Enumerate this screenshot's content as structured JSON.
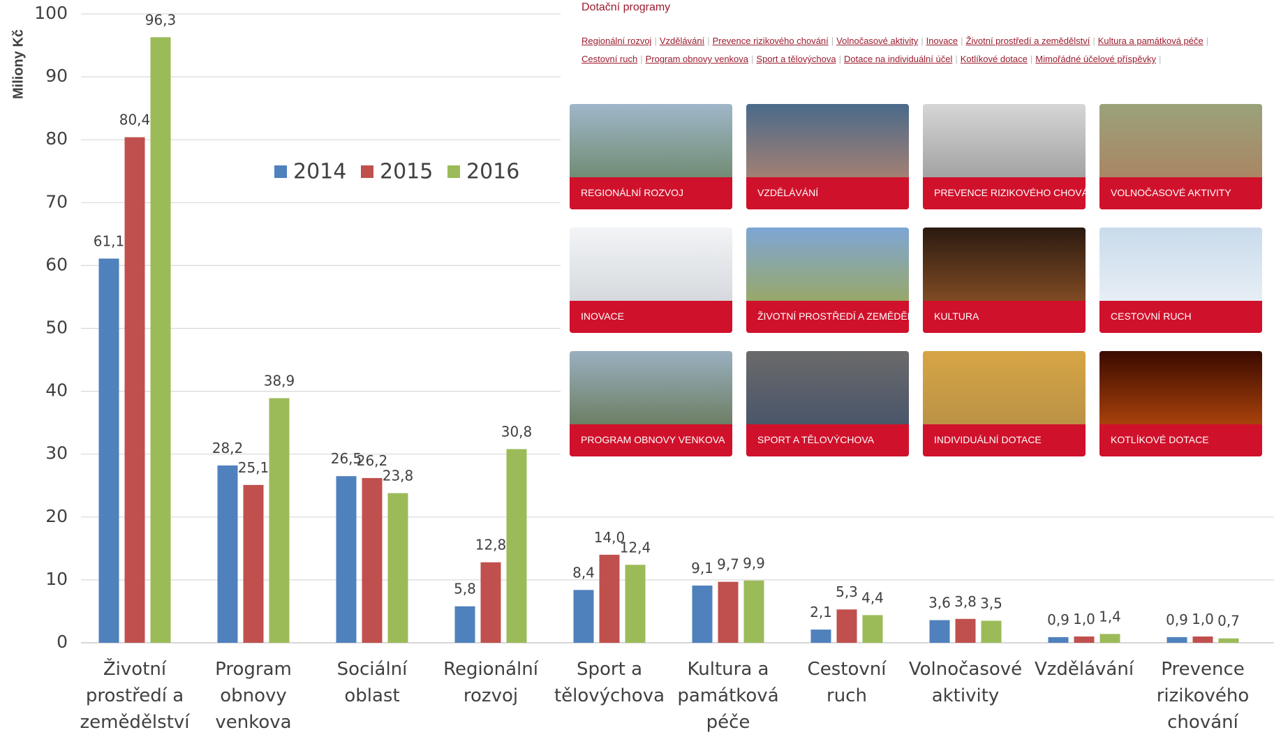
{
  "chart_data": {
    "type": "bar",
    "y_label": "Miliony Kč",
    "categories": [
      "Životní prostředí a zemědělství",
      "Program obnovy venkova",
      "Sociální oblast",
      "Regionální rozvoj",
      "Sport a tělovýchova",
      "Kultura a památková péče",
      "Cestovní ruch",
      "Volnočasové aktivity",
      "Vzdělávání",
      "Prevence rizikového chování"
    ],
    "series": [
      {
        "name": "2014",
        "color": "#4f81bd",
        "values": [
          61.1,
          28.2,
          26.5,
          5.8,
          8.4,
          9.1,
          2.1,
          3.6,
          0.9,
          0.9
        ],
        "value_labels": [
          "61,1",
          "28,2",
          "26,5",
          "5,8",
          "8,4",
          "9,1",
          "2,1",
          "3,6",
          "0,9",
          "0,9"
        ]
      },
      {
        "name": "2015",
        "color": "#c0504d",
        "values": [
          80.4,
          25.1,
          26.2,
          12.8,
          14.0,
          9.7,
          5.3,
          3.8,
          1.0,
          1.0
        ],
        "value_labels": [
          "80,4",
          "25,1",
          "26,2",
          "12,8",
          "14,0",
          "9,7",
          "5,3",
          "3,8",
          "1,0",
          "1,0"
        ]
      },
      {
        "name": "2016",
        "color": "#9bbb59",
        "values": [
          96.3,
          38.9,
          23.8,
          30.8,
          12.4,
          9.9,
          4.4,
          3.5,
          1.4,
          0.7
        ],
        "value_labels": [
          "96,3",
          "38,9",
          "23,8",
          "30,8",
          "12,4",
          "9,9",
          "4,4",
          "3,5",
          "1,4",
          "0,7"
        ]
      }
    ],
    "ylim": [
      0,
      100
    ],
    "yticks": [
      0,
      10,
      20,
      30,
      40,
      50,
      60,
      70,
      80,
      90,
      100
    ],
    "grid": true
  },
  "overlay": {
    "title": "Dotační programy",
    "links": [
      "Regionální rozvoj",
      "Vzdělávání",
      "Prevence rizikového chování",
      "Volnočasové aktivity",
      "Inovace",
      "Životní prostředí a zemědělství",
      "Kultura a památková péče",
      "Cestovní ruch",
      "Program obnovy venkova",
      "Sport a tělovýchova",
      "Dotace na individuální účel",
      "Kotlíkové dotace",
      "Mimořádné účelové příspěvky"
    ],
    "tiles": [
      "REGIONÁLNÍ ROZVOJ",
      "VZDĚLÁVÁNÍ",
      "PREVENCE RIZIKOVÉHO CHOVÁNÍ",
      "VOLNOČASOVÉ AKTIVITY",
      "INOVACE",
      "ŽIVOTNÍ PROSTŘEDÍ A ZEMĚDĚLSTVÍ",
      "KULTURA",
      "CESTOVNÍ RUCH",
      "PROGRAM OBNOVY VENKOVA",
      "SPORT A TĚLOVÝCHOVA",
      "INDIVIDUÁLNÍ DOTACE",
      "KOTLÍKOVÉ DOTACE"
    ]
  }
}
